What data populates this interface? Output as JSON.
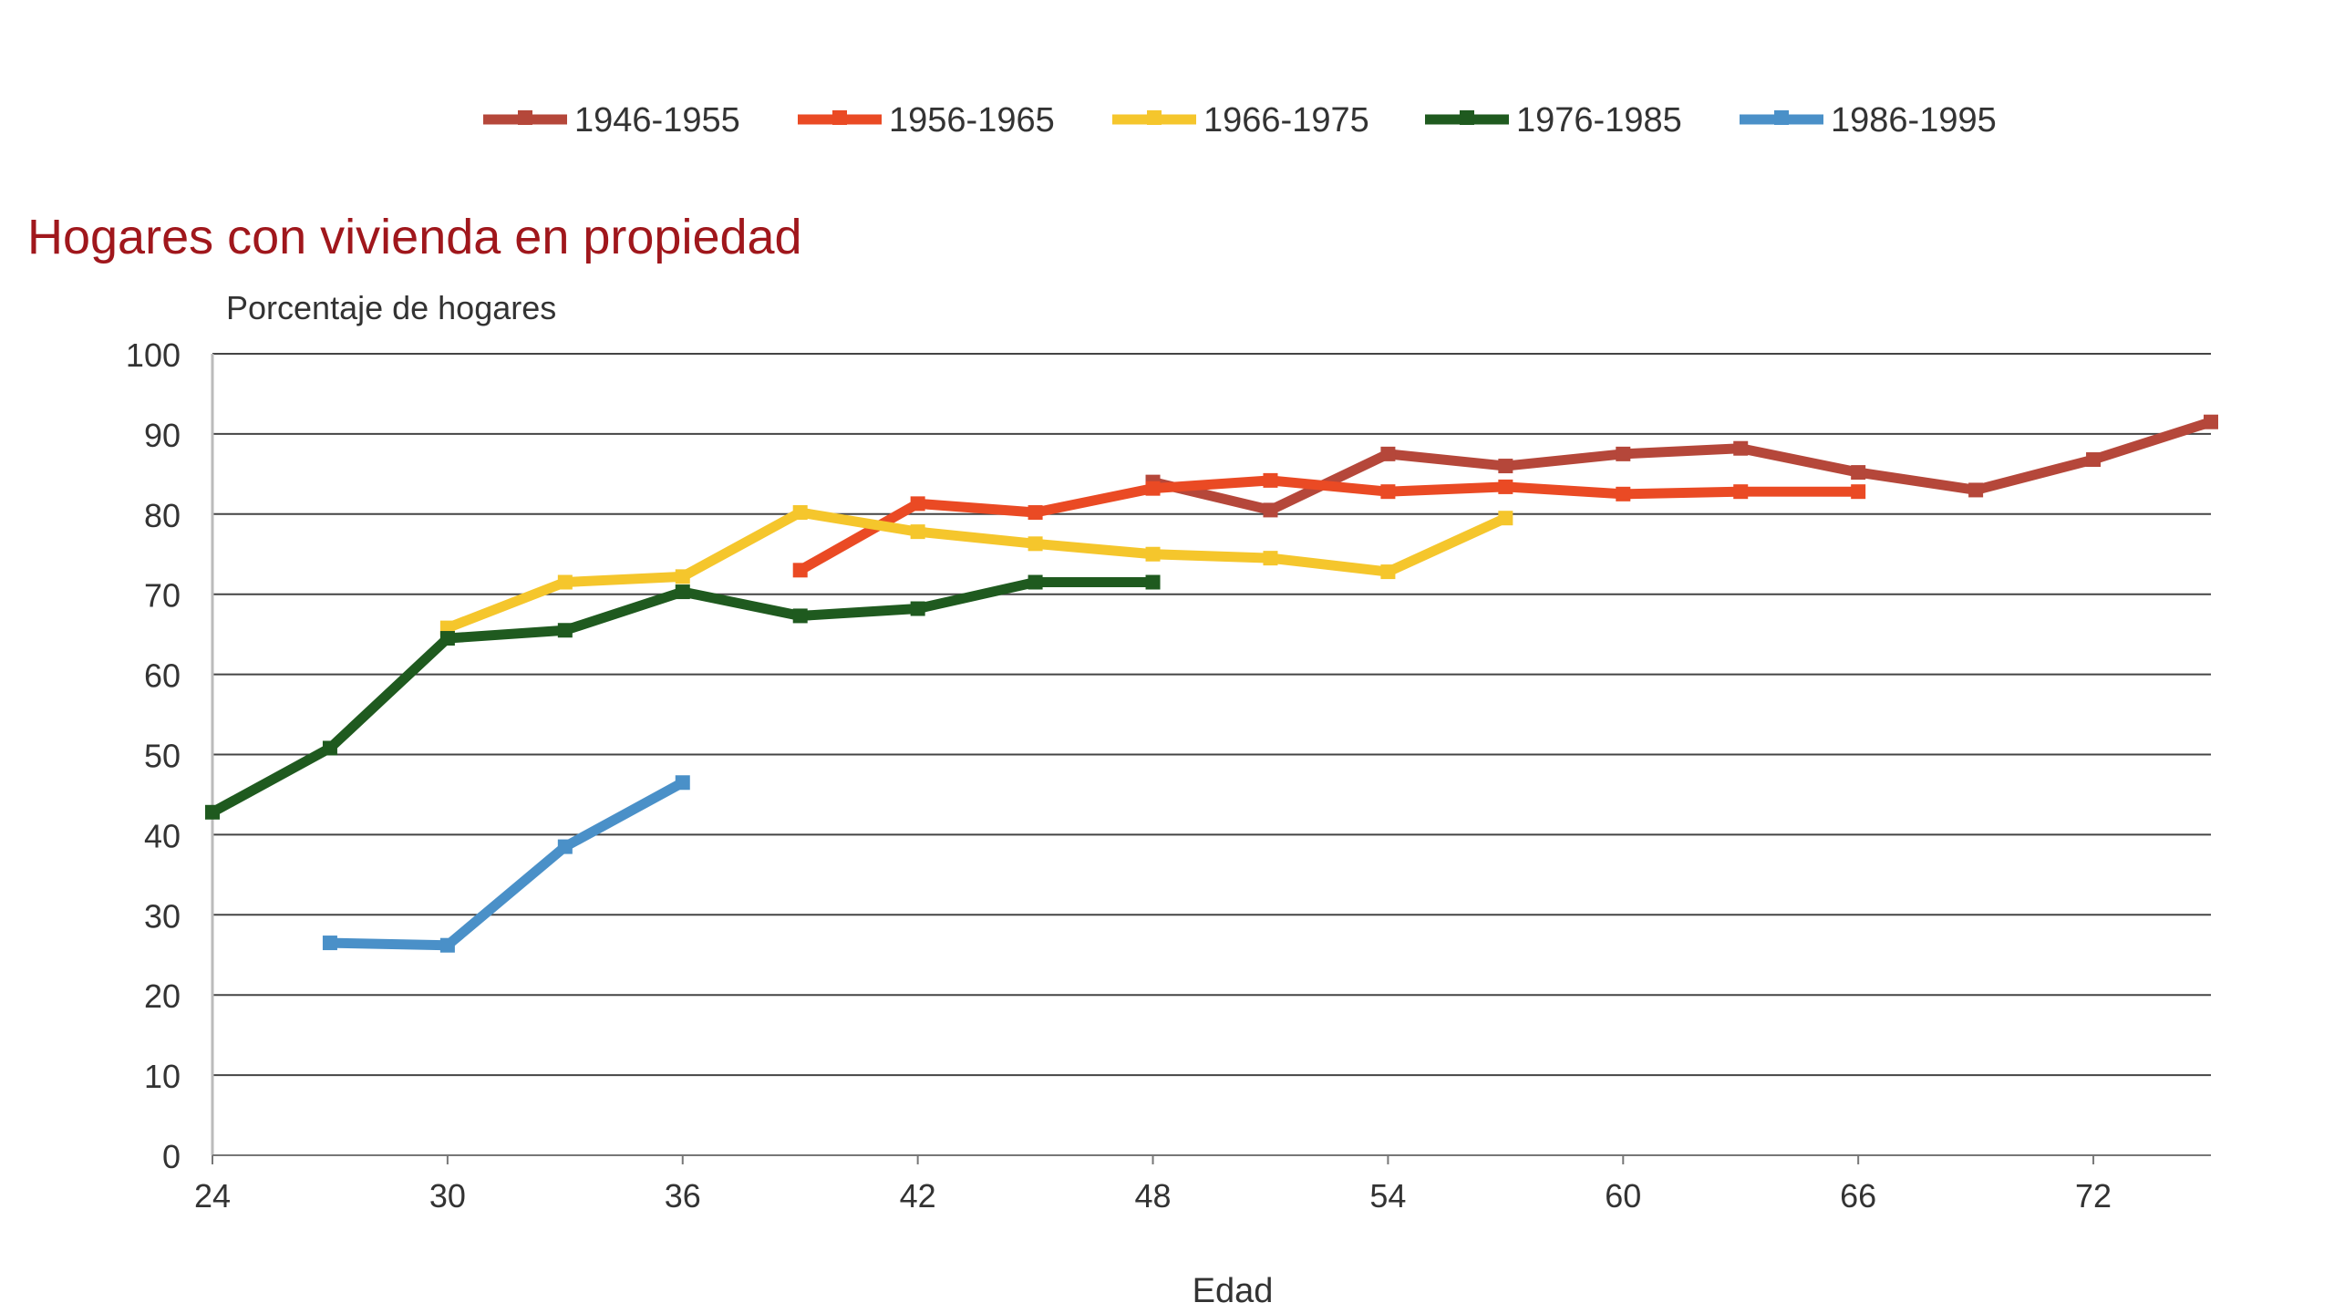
{
  "chart_data": {
    "type": "line",
    "title": "Hogares con vivienda en propiedad",
    "ylabel": "Porcentaje de hogares",
    "xlabel": "Edad",
    "xlim": [
      24,
      75
    ],
    "ylim": [
      0,
      100
    ],
    "x_ticks": [
      24,
      30,
      36,
      42,
      48,
      54,
      60,
      66,
      72
    ],
    "y_ticks": [
      0,
      10,
      20,
      30,
      40,
      50,
      60,
      70,
      80,
      90,
      100
    ],
    "grid": true,
    "legend_position": "top",
    "series": [
      {
        "name": "1946-1955",
        "color": "#b5473a",
        "points": [
          [
            48,
            84
          ],
          [
            51,
            80.5
          ],
          [
            54,
            87.5
          ],
          [
            57,
            86
          ],
          [
            60,
            87.5
          ],
          [
            63,
            88.2
          ],
          [
            66,
            85.2
          ],
          [
            69,
            83
          ],
          [
            72,
            86.8
          ],
          [
            75,
            91.5
          ]
        ]
      },
      {
        "name": "1956-1965",
        "color": "#ea4a24",
        "points": [
          [
            39,
            73
          ],
          [
            42,
            81.3
          ],
          [
            45,
            80.2
          ],
          [
            48,
            83.2
          ],
          [
            51,
            84.2
          ],
          [
            54,
            82.8
          ],
          [
            57,
            83.4
          ],
          [
            60,
            82.5
          ],
          [
            63,
            82.8
          ],
          [
            66,
            82.8
          ]
        ]
      },
      {
        "name": "1966-1975",
        "color": "#f5c62c",
        "points": [
          [
            30,
            65.8
          ],
          [
            33,
            71.5
          ],
          [
            36,
            72.2
          ],
          [
            39,
            80.2
          ],
          [
            42,
            77.8
          ],
          [
            45,
            76.3
          ],
          [
            48,
            75
          ],
          [
            51,
            74.5
          ],
          [
            54,
            72.8
          ],
          [
            57,
            79.5
          ]
        ]
      },
      {
        "name": "1976-1985",
        "color": "#1f5a1f",
        "points": [
          [
            24,
            42.8
          ],
          [
            27,
            50.8
          ],
          [
            30,
            64.5
          ],
          [
            33,
            65.5
          ],
          [
            36,
            70.3
          ],
          [
            39,
            67.3
          ],
          [
            42,
            68.2
          ],
          [
            45,
            71.5
          ],
          [
            48,
            71.5
          ]
        ]
      },
      {
        "name": "1986-1995",
        "color": "#4a90c8",
        "points": [
          [
            27,
            26.5
          ],
          [
            30,
            26.2
          ],
          [
            33,
            38.5
          ],
          [
            36,
            46.5
          ]
        ]
      }
    ]
  }
}
